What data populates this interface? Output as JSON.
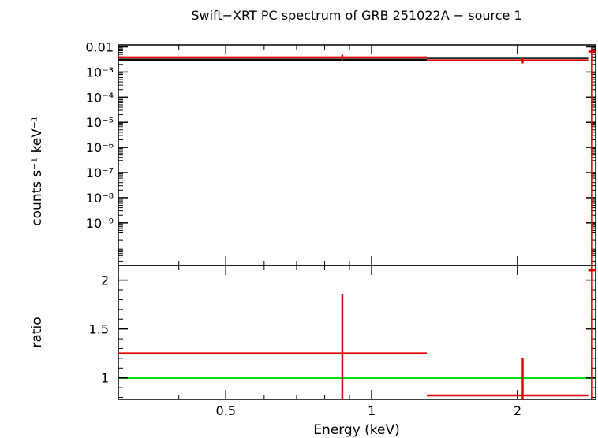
{
  "title": "Swift−XRT PC spectrum of GRB 251022A − source 1",
  "colors": {
    "data": "#e00000",
    "model": "#000000",
    "unity": "#00e000",
    "frame": "#000000"
  },
  "chart_data": [
    {
      "type": "scatter",
      "panel": "spectrum",
      "ylabel": "counts s⁻¹ keV⁻¹",
      "xscale": "log",
      "yscale": "log",
      "xlim": [
        0.3,
        2.9
      ],
      "ylim": [
        2e-11,
        0.012
      ],
      "ytick_values": [
        0.01,
        0.001,
        0.0001,
        1e-05,
        1e-06,
        1e-07,
        1e-08,
        1e-09
      ],
      "ytick_labels": [
        "0.01",
        "10⁻³",
        "10⁻⁴",
        "10⁻⁵",
        "10⁻⁶",
        "10⁻⁷",
        "10⁻⁸",
        "10⁻⁹"
      ],
      "series": [
        {
          "role": "data",
          "points": [
            {
              "x": 0.87,
              "xlo": 0.3,
              "xhi": 1.3,
              "y": 0.0038,
              "ylo": 0.0029,
              "yhi": 0.0049
            },
            {
              "x": 2.05,
              "xlo": 1.3,
              "xhi": 2.8,
              "y": 0.0029,
              "ylo": 0.0022,
              "yhi": 0.0037
            },
            {
              "x": 2.85,
              "xlo": 2.8,
              "xhi": 2.9,
              "y": 0.0065,
              "ylo": 2e-11,
              "yhi": 0.0085
            }
          ]
        },
        {
          "role": "model",
          "segments": [
            {
              "xlo": 0.3,
              "xhi": 1.3,
              "y": 0.0031
            },
            {
              "xlo": 1.3,
              "xhi": 2.8,
              "y": 0.0036
            }
          ]
        }
      ]
    },
    {
      "type": "scatter",
      "panel": "ratio",
      "xlabel": "Energy (keV)",
      "ylabel": "ratio",
      "xscale": "log",
      "xlim": [
        0.3,
        2.9
      ],
      "ylim": [
        0.78,
        2.15
      ],
      "xtick_values": [
        0.5,
        1,
        2
      ],
      "xtick_labels": [
        "0.5",
        "1",
        "2"
      ],
      "ytick_values": [
        1,
        1.5,
        2
      ],
      "ytick_labels": [
        "1",
        "1.5",
        "2"
      ],
      "reference_line": 1,
      "series": [
        {
          "role": "data",
          "points": [
            {
              "x": 0.87,
              "xlo": 0.3,
              "xhi": 1.3,
              "y": 1.25,
              "ylo": 0.78,
              "yhi": 1.86
            },
            {
              "x": 2.05,
              "xlo": 1.3,
              "xhi": 2.8,
              "y": 0.82,
              "ylo": 0.78,
              "yhi": 1.2
            },
            {
              "x": 2.85,
              "xlo": 2.8,
              "xhi": 2.9,
              "y": 2.1,
              "ylo": 0.78,
              "yhi": 2.15
            }
          ]
        }
      ]
    }
  ]
}
